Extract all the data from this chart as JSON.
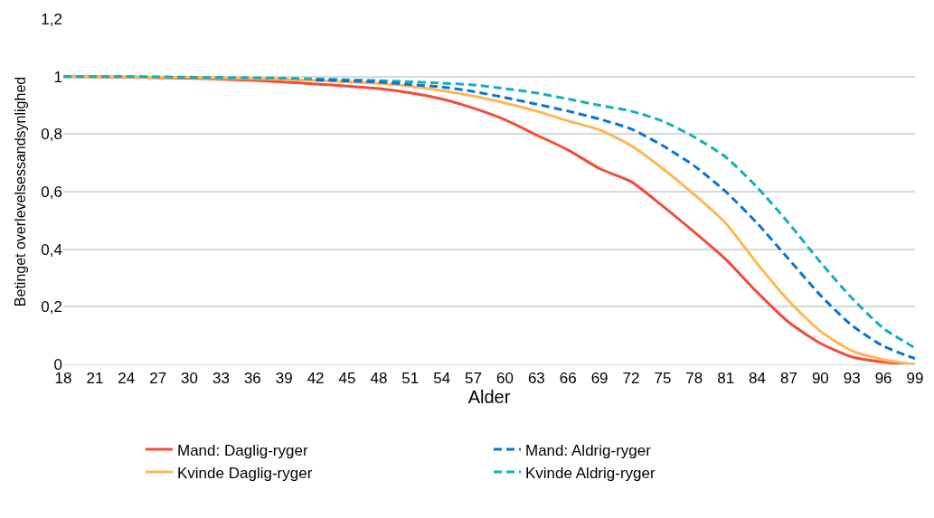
{
  "chart_data": {
    "type": "line",
    "xlabel": "Alder",
    "ylabel": "Betinget overlevelsessandsynlighed",
    "x": [
      18,
      21,
      24,
      27,
      30,
      33,
      36,
      39,
      42,
      45,
      48,
      51,
      54,
      57,
      60,
      63,
      66,
      69,
      72,
      75,
      78,
      81,
      84,
      87,
      90,
      93,
      96,
      99
    ],
    "xlim": [
      18,
      99
    ],
    "xticks": [
      18,
      21,
      24,
      27,
      30,
      33,
      36,
      39,
      42,
      45,
      48,
      51,
      54,
      57,
      60,
      63,
      66,
      69,
      72,
      75,
      78,
      81,
      84,
      87,
      90,
      93,
      96,
      99
    ],
    "ylim": [
      0,
      1.2
    ],
    "yticks": [
      0,
      {
        "value": 0.2,
        "label": "0,2"
      },
      {
        "value": 0.4,
        "label": "0,4"
      },
      {
        "value": 0.6,
        "label": "0,6"
      },
      {
        "value": 0.8,
        "label": "0,8"
      },
      1,
      {
        "value": 1.2,
        "label": "1,2"
      }
    ],
    "grid": "y",
    "legend": "bottom",
    "marker": "none",
    "series": [
      {
        "name": "Mand: Daglig-ryger",
        "color": "#f44b3b",
        "line_style": "solid",
        "values": [
          1,
          0.999,
          0.998,
          0.996,
          0.994,
          0.991,
          0.987,
          0.981,
          0.974,
          0.967,
          0.958,
          0.943,
          0.922,
          0.89,
          0.85,
          0.797,
          0.745,
          0.68,
          0.635,
          0.55,
          0.46,
          0.365,
          0.25,
          0.146,
          0.073,
          0.026,
          0.008,
          0
        ]
      },
      {
        "name": "Mand: Aldrig-ryger",
        "color": "#0a74d4",
        "line_style": "dashed",
        "values": [
          null,
          null,
          null,
          null,
          null,
          null,
          null,
          null,
          0.988,
          0.985,
          0.981,
          0.972,
          0.964,
          0.948,
          0.927,
          0.904,
          0.88,
          0.852,
          0.818,
          0.76,
          0.69,
          0.6,
          0.49,
          0.365,
          0.24,
          0.135,
          0.063,
          0.02
        ]
      },
      {
        "name": "Kvinde Daglig-ryger",
        "color": "#ffb655",
        "line_style": "solid",
        "values": [
          1,
          0.999,
          0.999,
          0.998,
          0.997,
          0.995,
          0.993,
          0.99,
          0.986,
          0.982,
          0.976,
          0.966,
          0.951,
          0.932,
          0.908,
          0.88,
          0.846,
          0.815,
          0.76,
          0.68,
          0.59,
          0.49,
          0.35,
          0.22,
          0.115,
          0.047,
          0.016,
          0
        ]
      },
      {
        "name": "Kvinde Aldrig-ryger",
        "color": "#13b0b8",
        "line_style": "dashed",
        "values": [
          1,
          1,
          1,
          0.999,
          0.998,
          0.997,
          0.996,
          0.994,
          0.992,
          0.989,
          0.986,
          0.982,
          0.977,
          0.971,
          0.958,
          0.943,
          0.922,
          0.9,
          0.88,
          0.845,
          0.79,
          0.72,
          0.615,
          0.49,
          0.355,
          0.23,
          0.125,
          0.057
        ]
      }
    ]
  }
}
